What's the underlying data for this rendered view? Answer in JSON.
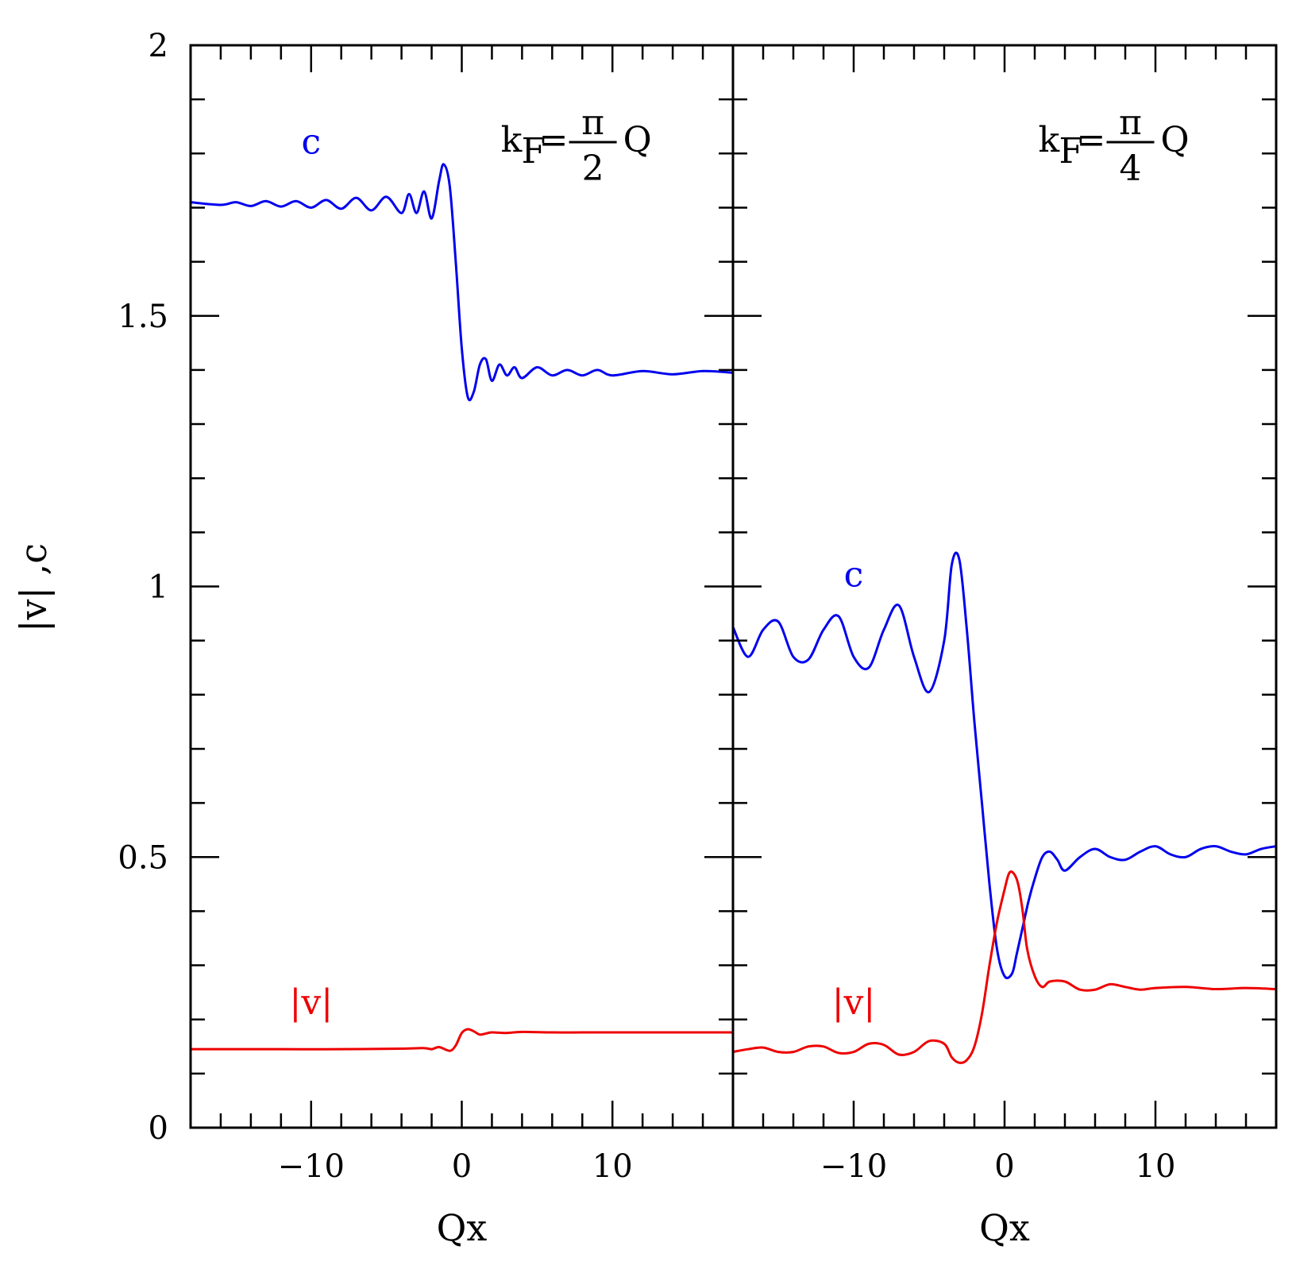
{
  "figure": {
    "ylabel": "|v| ,c"
  },
  "colors": {
    "c": "#0000ee",
    "v": "#ee0000",
    "axis": "#000000"
  },
  "chart_data": [
    {
      "type": "line",
      "panel": "left",
      "title": "",
      "panel_label": {
        "k": "k",
        "sub": "F",
        "eq": "=",
        "num": "π",
        "den": "2",
        "tail": "Q"
      },
      "xlabel": "Qx",
      "ylabel": "|v| ,c",
      "xlim": [
        -18,
        18
      ],
      "ylim": [
        0,
        2
      ],
      "x_ticks": [
        -10,
        0,
        10
      ],
      "x_tick_labels": [
        "−10",
        "0",
        "10"
      ],
      "y_ticks": [
        0,
        0.5,
        1,
        1.5,
        2
      ],
      "y_tick_labels": [
        "0",
        "0.5",
        "1",
        "1.5",
        "2"
      ],
      "grid": false,
      "legend": "none (inline labels)",
      "series": [
        {
          "name": "c",
          "x": [
            -18,
            -16,
            -15,
            -14,
            -13,
            -12,
            -11,
            -10,
            -9,
            -8,
            -7,
            -6,
            -5,
            -4,
            -3.5,
            -3,
            -2.5,
            -2,
            -1.5,
            -1.2,
            -0.8,
            -0.4,
            0,
            0.4,
            0.8,
            1.2,
            1.6,
            2,
            2.5,
            3,
            3.5,
            4,
            5,
            6,
            7,
            8,
            9,
            10,
            12,
            14,
            16,
            18
          ],
          "values": [
            1.71,
            1.705,
            1.71,
            1.703,
            1.712,
            1.702,
            1.712,
            1.7,
            1.714,
            1.698,
            1.718,
            1.695,
            1.72,
            1.69,
            1.725,
            1.69,
            1.73,
            1.68,
            1.75,
            1.78,
            1.74,
            1.6,
            1.44,
            1.35,
            1.36,
            1.41,
            1.42,
            1.38,
            1.41,
            1.39,
            1.405,
            1.385,
            1.405,
            1.39,
            1.4,
            1.39,
            1.4,
            1.39,
            1.398,
            1.392,
            1.398,
            1.395
          ]
        },
        {
          "name": "|v|",
          "x": [
            -18,
            -12,
            -8,
            -4,
            -2.5,
            -2,
            -1.5,
            -0.8,
            -0.4,
            0,
            0.4,
            0.8,
            1.2,
            1.6,
            2,
            3,
            4,
            6,
            8,
            10,
            14,
            18
          ],
          "values": [
            0.145,
            0.145,
            0.145,
            0.146,
            0.147,
            0.145,
            0.149,
            0.142,
            0.152,
            0.175,
            0.182,
            0.178,
            0.172,
            0.174,
            0.176,
            0.175,
            0.177,
            0.176,
            0.176,
            0.176,
            0.176,
            0.176
          ]
        }
      ],
      "annotations": [
        {
          "text": "c",
          "x": -10,
          "y": 1.8,
          "color": "blue"
        },
        {
          "text": "|v|",
          "x": -10,
          "y": 0.21,
          "color": "red"
        }
      ]
    },
    {
      "type": "line",
      "panel": "right",
      "title": "",
      "panel_label": {
        "k": "k",
        "sub": "F",
        "eq": "=",
        "num": "π",
        "den": "4",
        "tail": "Q"
      },
      "xlabel": "Qx",
      "xlim": [
        -18,
        18
      ],
      "ylim": [
        0,
        2
      ],
      "x_ticks": [
        -10,
        0,
        10
      ],
      "x_tick_labels": [
        "−10",
        "0",
        "10"
      ],
      "grid": false,
      "legend": "none (inline labels)",
      "series": [
        {
          "name": "c",
          "x": [
            -18,
            -17,
            -16,
            -15,
            -14,
            -13,
            -12,
            -11,
            -10,
            -9,
            -8,
            -7,
            -6,
            -5,
            -4,
            -3.5,
            -3,
            -2.5,
            -2,
            -1.5,
            -1,
            -0.5,
            0,
            0.5,
            0.8,
            1.2,
            1.6,
            2,
            2.5,
            3,
            3.5,
            4,
            5,
            6,
            7,
            8,
            9,
            10,
            11,
            12,
            13,
            14,
            15,
            16,
            17,
            18
          ],
          "values": [
            0.925,
            0.87,
            0.92,
            0.935,
            0.87,
            0.865,
            0.92,
            0.945,
            0.87,
            0.85,
            0.92,
            0.965,
            0.87,
            0.805,
            0.9,
            1.04,
            1.05,
            0.92,
            0.75,
            0.6,
            0.45,
            0.33,
            0.28,
            0.285,
            0.32,
            0.37,
            0.42,
            0.46,
            0.5,
            0.51,
            0.495,
            0.475,
            0.5,
            0.515,
            0.5,
            0.495,
            0.51,
            0.52,
            0.505,
            0.5,
            0.515,
            0.52,
            0.51,
            0.505,
            0.515,
            0.52
          ]
        },
        {
          "name": "|v|",
          "x": [
            -18,
            -17,
            -16,
            -15,
            -14,
            -13,
            -12,
            -11,
            -10,
            -9,
            -8,
            -7,
            -6,
            -5,
            -4,
            -3.5,
            -3,
            -2.5,
            -2,
            -1.5,
            -1,
            -0.5,
            0,
            0.3,
            0.6,
            0.9,
            1.2,
            1.5,
            2,
            2.5,
            3,
            4,
            5,
            6,
            7,
            8,
            9,
            10,
            12,
            14,
            16,
            18
          ],
          "values": [
            0.14,
            0.145,
            0.148,
            0.14,
            0.14,
            0.15,
            0.15,
            0.138,
            0.14,
            0.155,
            0.153,
            0.135,
            0.14,
            0.16,
            0.155,
            0.13,
            0.12,
            0.125,
            0.15,
            0.21,
            0.3,
            0.38,
            0.44,
            0.47,
            0.47,
            0.45,
            0.4,
            0.33,
            0.28,
            0.26,
            0.27,
            0.27,
            0.255,
            0.255,
            0.265,
            0.26,
            0.255,
            0.258,
            0.26,
            0.256,
            0.258,
            0.256
          ]
        }
      ],
      "annotations": [
        {
          "text": "c",
          "x": -10,
          "y": 1.0,
          "color": "blue"
        },
        {
          "text": "|v|",
          "x": -10,
          "y": 0.21,
          "color": "red"
        }
      ]
    }
  ]
}
